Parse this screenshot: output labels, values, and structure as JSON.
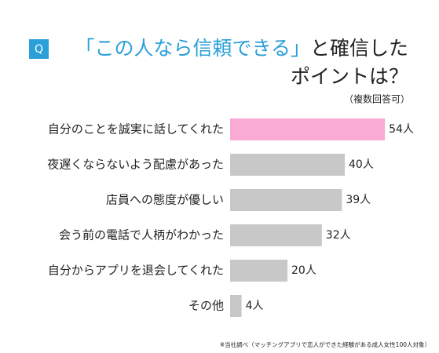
{
  "chart_data": {
    "type": "bar",
    "title_badge": "Q",
    "title_highlight": "「この人なら信頼できる」",
    "title": "と確信した",
    "title_line2": "ポイントは？",
    "subtitle": "（複数回答可）",
    "note": "※当社調べ（マッチングアプリで恋人ができた経験がある成人女性100人対象）",
    "categories": [
      "自分のことを誠実に話してくれた",
      "夜遅くならないよう配慮があった",
      "店員への態度が優しい",
      "会う前の電話で人柄がわかった",
      "自分からアプリを退会してくれた",
      "その他"
    ],
    "values": [
      54,
      40,
      39,
      32,
      20,
      4
    ],
    "value_labels": [
      "54人",
      "40人",
      "39人",
      "32人",
      "20人",
      "4人"
    ],
    "colors": [
      "#f9abd6",
      "#c8c8c8",
      "#c8c8c8",
      "#c8c8c8",
      "#c8c8c8",
      "#c8c8c8"
    ],
    "title_color": "#2a9fd8"
  }
}
